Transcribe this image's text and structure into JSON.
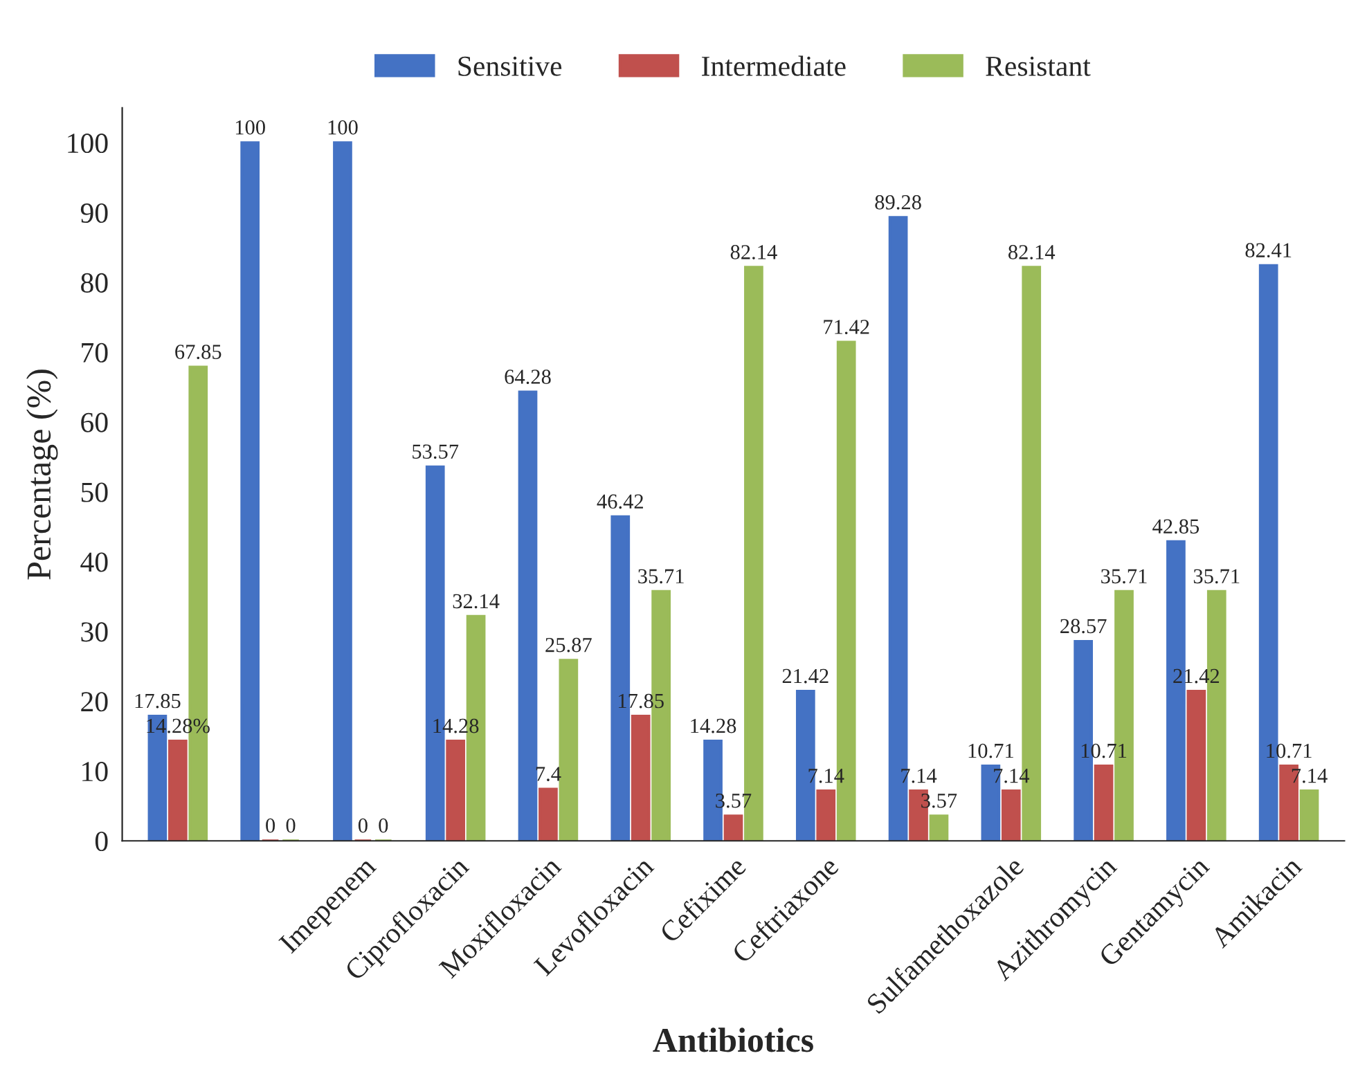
{
  "chart_data": {
    "type": "bar",
    "xlabel": "Antibiotics",
    "ylabel": "Percentage (%)",
    "categories": [
      null,
      null,
      "Imepenem",
      "Ciprofloxacin",
      "Moxifloxacin",
      "Levofloxacin",
      "Cefixime",
      "Ceftriaxone",
      null,
      "Sulfamethoxazole",
      "Azithromycin",
      "Gentamycin",
      "Amikacin"
    ],
    "series": [
      {
        "name": "Sensitive",
        "color": "#4472c4",
        "values": [
          17.85,
          100,
          100,
          53.57,
          64.28,
          46.42,
          14.28,
          21.42,
          89.28,
          10.71,
          28.57,
          42.85,
          82.41
        ],
        "value_labels": [
          "17.85",
          "100",
          "100",
          "53.57",
          "64.28",
          "46.42",
          "14.28",
          "21.42",
          "89.28",
          "10.71",
          "28.57",
          "42.85",
          "82.41"
        ]
      },
      {
        "name": "Intermediate",
        "color": "#c0504d",
        "values": [
          14.28,
          0,
          0,
          14.28,
          7.4,
          17.85,
          3.57,
          7.14,
          7.14,
          7.14,
          10.71,
          21.42,
          10.71
        ],
        "value_labels": [
          "14.28%",
          "0",
          "0",
          "14.28",
          "7.4",
          "17.85",
          "3.57",
          "7.14",
          "7.14",
          "7.14",
          "10.71",
          "21.42",
          "10.71"
        ]
      },
      {
        "name": "Resistant",
        "color": "#9bbb59",
        "values": [
          67.85,
          0,
          0,
          32.14,
          25.87,
          35.71,
          82.14,
          71.42,
          3.57,
          82.14,
          35.71,
          35.71,
          7.14
        ],
        "value_labels": [
          "67.85",
          "0",
          "0",
          "32.14",
          "25.87",
          "35.71",
          "82.14",
          "71.42",
          "3.57",
          "82.14",
          "35.71",
          "35.71",
          "7.14"
        ]
      }
    ],
    "ylim": [
      0,
      105
    ],
    "yticks": [
      0,
      10,
      20,
      30,
      40,
      50,
      60,
      70,
      80,
      90,
      100
    ],
    "grid": false,
    "legend": "top"
  }
}
